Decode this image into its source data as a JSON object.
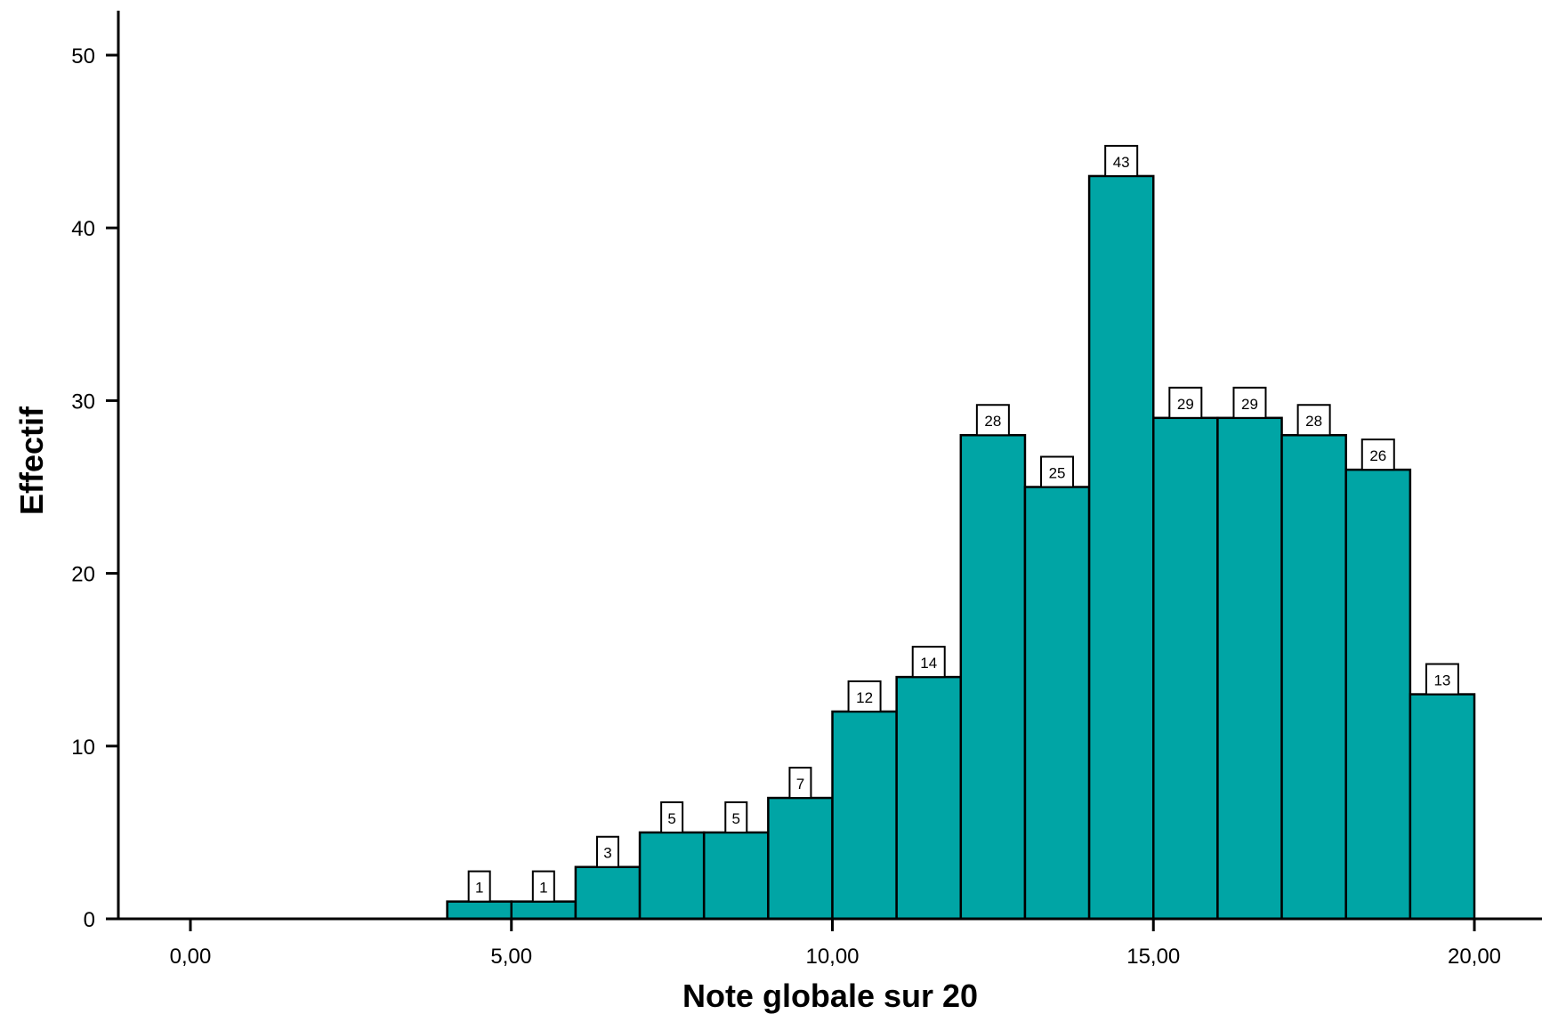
{
  "chart_data": {
    "type": "bar",
    "xlabel": "Note globale sur 20",
    "ylabel": "Effectif",
    "xlim": [
      -1.15,
      21.3
    ],
    "ylim": [
      0,
      52.5
    ],
    "x_ticks": [
      0,
      5,
      10,
      15,
      20
    ],
    "x_tick_labels": [
      "0,00",
      "5,00",
      "10,00",
      "15,00",
      "20,00"
    ],
    "y_ticks": [
      0,
      10,
      20,
      30,
      40,
      50
    ],
    "y_tick_labels": [
      "0",
      "10",
      "20",
      "30",
      "40",
      "50"
    ],
    "bins": [
      {
        "start": 4,
        "end": 5,
        "value": 1
      },
      {
        "start": 5,
        "end": 6,
        "value": 1
      },
      {
        "start": 6,
        "end": 7,
        "value": 3
      },
      {
        "start": 7,
        "end": 8,
        "value": 5
      },
      {
        "start": 8,
        "end": 9,
        "value": 5
      },
      {
        "start": 9,
        "end": 10,
        "value": 7
      },
      {
        "start": 10,
        "end": 11,
        "value": 12
      },
      {
        "start": 11,
        "end": 12,
        "value": 14
      },
      {
        "start": 12,
        "end": 13,
        "value": 28
      },
      {
        "start": 13,
        "end": 14,
        "value": 25
      },
      {
        "start": 14,
        "end": 15,
        "value": 43
      },
      {
        "start": 15,
        "end": 16,
        "value": 29
      },
      {
        "start": 16,
        "end": 17,
        "value": 29
      },
      {
        "start": 17,
        "end": 18,
        "value": 28
      },
      {
        "start": 18,
        "end": 19,
        "value": 26
      },
      {
        "start": 19,
        "end": 20,
        "value": 13
      }
    ],
    "data_labels": true,
    "grid": false,
    "bar_color": "#00a5a5"
  }
}
